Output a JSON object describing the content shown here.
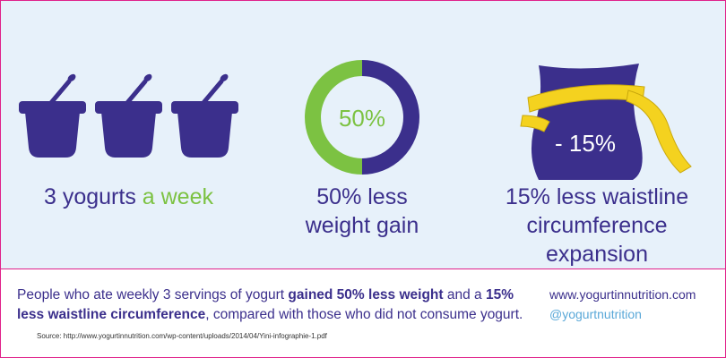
{
  "panels": [
    {
      "caption": "3 yogurts",
      "highlight": "a week"
    },
    {
      "center": "50%",
      "caption_lines": [
        "50% less",
        "weight gain"
      ]
    },
    {
      "badge": "- 15%",
      "caption_lines": [
        "15% less waistline",
        "circumference expansion"
      ]
    }
  ],
  "footer": {
    "text_parts": [
      "People who ate weekly 3 servings of yogurt ",
      "gained 50% less weight",
      " and a ",
      "15% less waistline circumference",
      ", compared with those who did not consume yogurt."
    ],
    "website": "www.yogurtinnutrition.com",
    "handle": "@yogurtnutrition",
    "source": "Source: http://www.yogurtinnutrition.com/wp-content/uploads/2014/04/Yini-infographie-1.pdf"
  }
}
